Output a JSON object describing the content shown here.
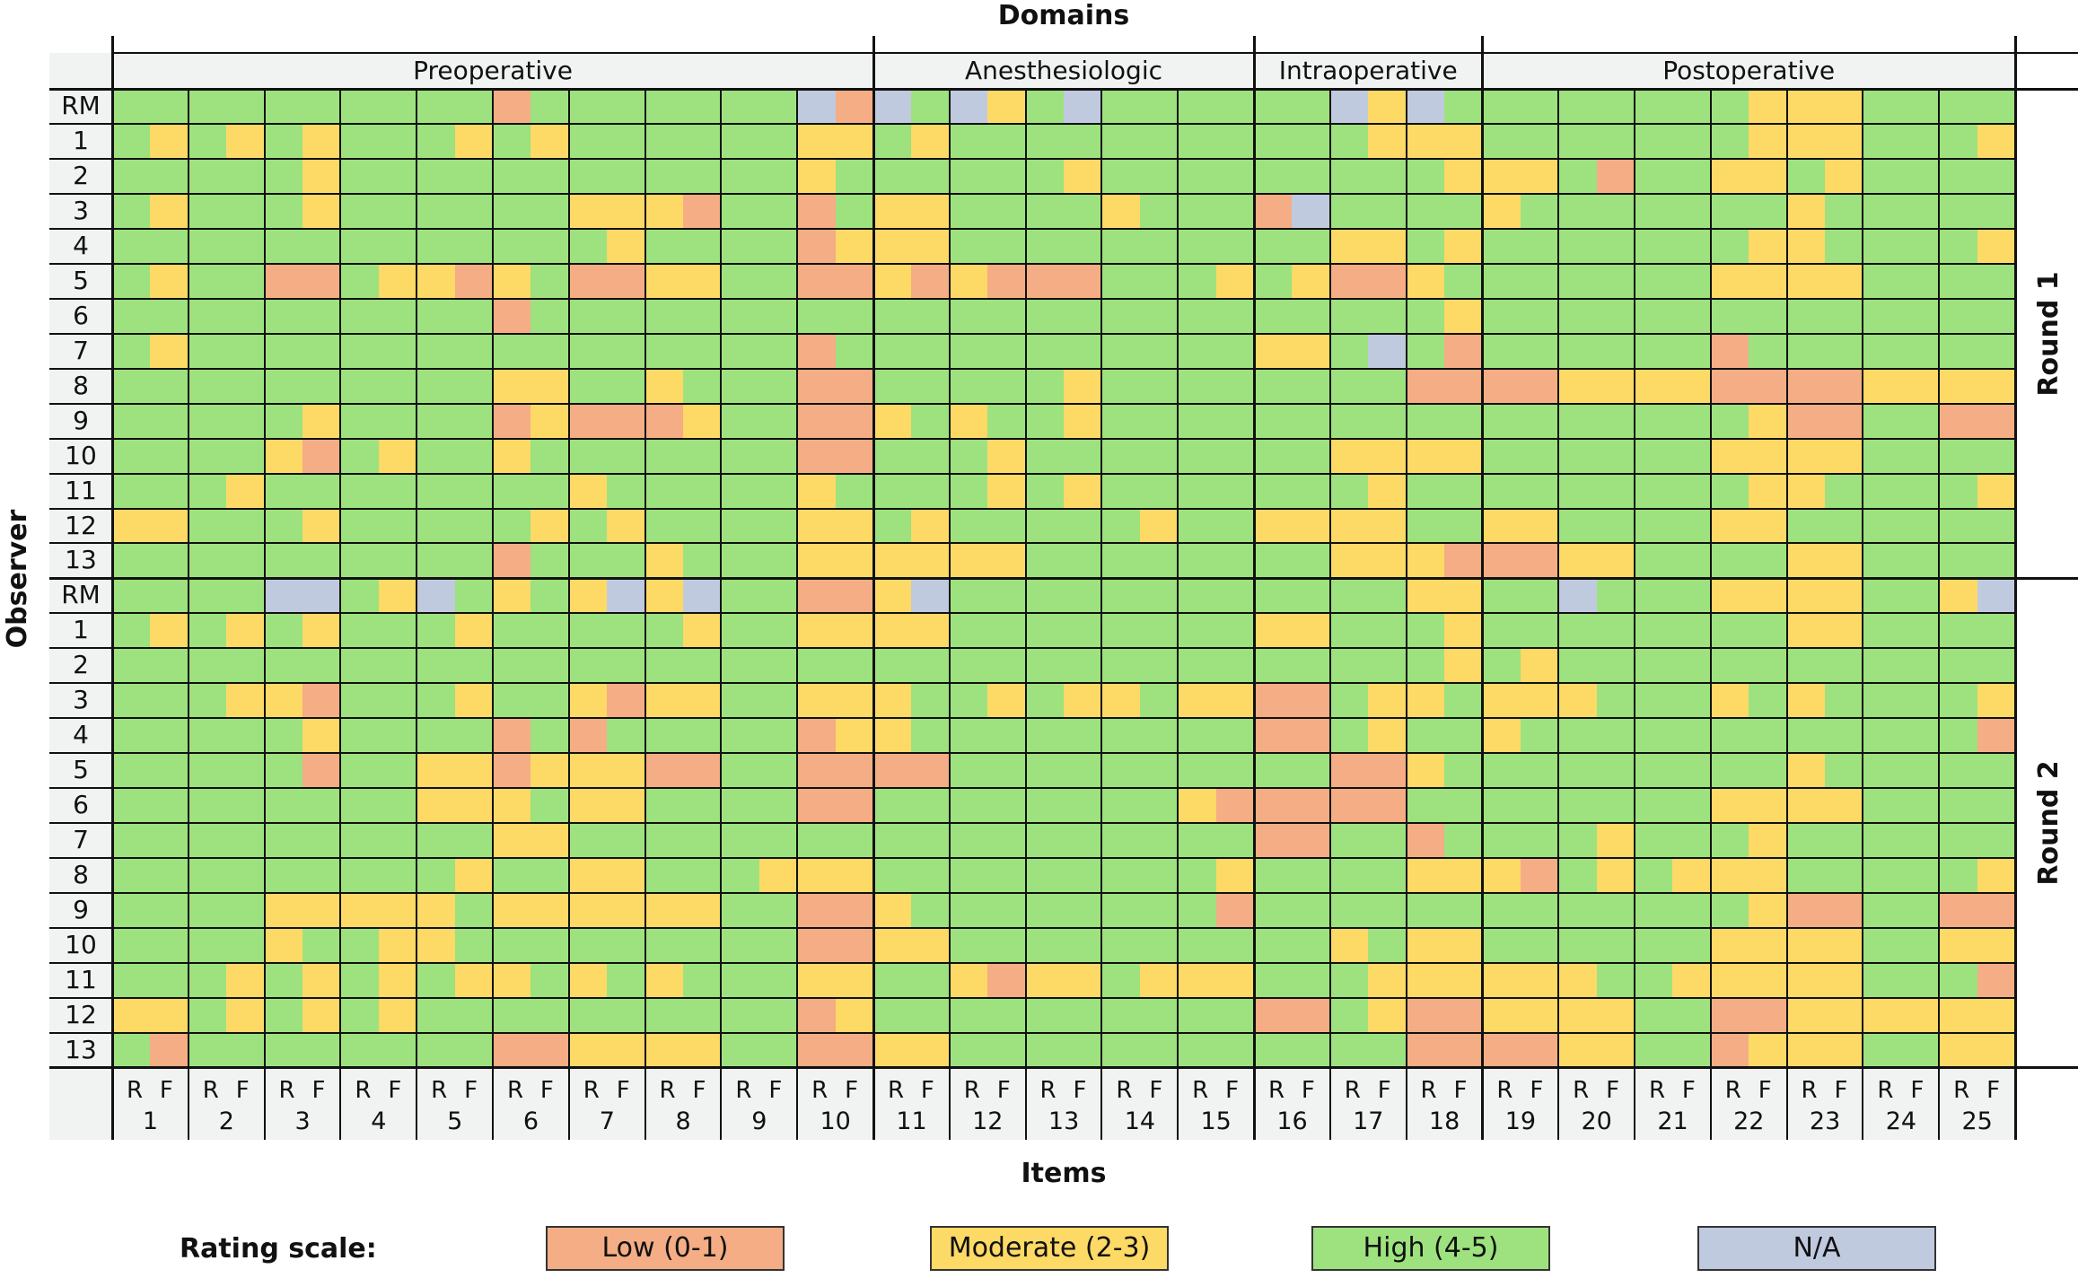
{
  "chart_data": {
    "type": "heatmap",
    "title": "Domains",
    "xlabel": "Items",
    "ylabel": "Observer",
    "subcolumns": [
      "R",
      "F"
    ],
    "items": [
      1,
      2,
      3,
      4,
      5,
      6,
      7,
      8,
      9,
      10,
      11,
      12,
      13,
      14,
      15,
      16,
      17,
      18,
      19,
      20,
      21,
      22,
      23,
      24,
      25
    ],
    "domains": [
      {
        "name": "Preoperative",
        "first_item": 1,
        "last_item": 10
      },
      {
        "name": "Anesthesiologic",
        "first_item": 11,
        "last_item": 15
      },
      {
        "name": "Intraoperative",
        "first_item": 16,
        "last_item": 18
      },
      {
        "name": "Postoperative",
        "first_item": 19,
        "last_item": 25
      }
    ],
    "rounds": [
      {
        "name": "Round 1",
        "rows": [
          {
            "observer": "RM",
            "cells": "HH HH HH HH HH LH HH HH HH NL NH NM HN HH HH HH NM NH HH HH HH HM MM HH HH"
          },
          {
            "observer": "1",
            "cells": "HM HM HM HH HM HM HH HH HH MM HM HH HH HH HH HH HM MM HH HH HH HM MM HH HM"
          },
          {
            "observer": "2",
            "cells": "HH HH HM HH HH HH HH HH HH MH HH HH HM HH HH HH HH HM MM HL HH MM HM HH HH"
          },
          {
            "observer": "3",
            "cells": "HM HH HM HH HH HH MM ML HH LH MM HH HH MH HH LN HH HH MH HH HH HH MH HH HH"
          },
          {
            "observer": "4",
            "cells": "HH HH HH HH HH HH HM HH HH LM MM HH HH HH HH HH MM HM HH HH HH HM MH HH HM"
          },
          {
            "observer": "5",
            "cells": "HM HH LL HM ML MH LL MM HH LL ML ML LL HH HM HM LL MH HH HH HH MM MM HH HH"
          },
          {
            "observer": "6",
            "cells": "HH HH HH HH HH LH HH HH HH HH HH HH HH HH HH HH HH HM HH HH HH HH HH HH HH"
          },
          {
            "observer": "7",
            "cells": "HM HH HH HH HH HH HH HH HH LH HH HH HH HH HH MM HN HL HH HH HH LH HH HH HH"
          },
          {
            "observer": "8",
            "cells": "HH HH HH HH HH MM HH MH HH LL HH HH HM HH HH HH HH LL LL MM MM LL LL MM MM"
          },
          {
            "observer": "9",
            "cells": "HH HH HM HH HH LM LL LM HH LL MH MH HM HH HH HH HH HH HH HH HH HM LL HH LL"
          },
          {
            "observer": "10",
            "cells": "HH HH ML HM HH MH HH HH HH LL HH HM HH HH HH HH MM MM HH HH HH MM MM HH HH"
          },
          {
            "observer": "11",
            "cells": "HH HM HH HH HH HH MH HH HH MH HH HM HM HH HH HH HM HH HH HH HH HM MH HH HM"
          },
          {
            "observer": "12",
            "cells": "MM HH HM HH HH HM HM HH HH MM HM HH HH HM HH MM MM HH MM HH HH MM HH HH HH"
          },
          {
            "observer": "13",
            "cells": "HH HH HH HH HH LH HH MH HH MM MM MM HH HH HH HH MM ML LL MM HH HH MM HH HH"
          }
        ]
      },
      {
        "name": "Round 2",
        "rows": [
          {
            "observer": "RM",
            "cells": "HH HH NN HM NH MH MN MN HH LL MN HH HH HH HH HH HH MM HH NH HH MM MM HH MN"
          },
          {
            "observer": "1",
            "cells": "HM HM HM HH HM HH HH HM HH MM MM HH HH HH HH MM HH HM HH HH HH HH MM HH HH"
          },
          {
            "observer": "2",
            "cells": "HH HH HH HH HH HH HH HH HH HH HH HH HH HH HH HH HH HM HM HH HH HH HH HH HH"
          },
          {
            "observer": "3",
            "cells": "HH HM ML HH HM HH ML MM HH MM MH HM HM MH MM LL HM MH MM MH HH MH MH HH HM"
          },
          {
            "observer": "4",
            "cells": "HH HH HM HH HH LH LH HH HH LM MH HH HH HH HH LL HM HH MH HH HH HH HH HH HL"
          },
          {
            "observer": "5",
            "cells": "HH HH HL HH MM LM MM LL HH LL LL HH HH HH HH HH LL MH HH HH HH HH MH HH HH"
          },
          {
            "observer": "6",
            "cells": "HH HH HH HH MM MH MM HH HH LL HH HH HH HH ML LL LL HH HH HH HH MM MM HH HH"
          },
          {
            "observer": "7",
            "cells": "HH HH HH HH HH MM HH HH HH HH HH HH HH HH HH LL HH LH HH HM HH HM HH HH HH"
          },
          {
            "observer": "8",
            "cells": "HH HH HH HH HM HH MM HH HM MM HH HH HH HH HM HH HH MM ML HM HM MM HH HH HM"
          },
          {
            "observer": "9",
            "cells": "HH HH MM MM MH MM MM MM HH LL MH HH HH HH HL HH HH HH HH HH HH HM LL HH LL"
          },
          {
            "observer": "10",
            "cells": "HH HH MH HM MH HH HH HH HH LL MM HH HH HH HH HH MH MM HH HH HH MM MM HH MM"
          },
          {
            "observer": "11",
            "cells": "HH HM HM HM HM MH MH MH HH MM HH ML MM HM MM HH HM MM MM MH HM MM MM HH HL"
          },
          {
            "observer": "12",
            "cells": "MM HM HM HM HH HH HH HH HH LM HH HH HH HH HH LL HM LL MM MM HH LL MM MM MM"
          },
          {
            "observer": "13",
            "cells": "HL HH HH HH HH LL MM MM HH LL MM HH HH HH HH HH HH LL LL MM HH LM MM HH MM"
          }
        ]
      }
    ],
    "legend_title": "Rating scale:",
    "legend_placement": "bottom",
    "legend": [
      {
        "code": "L",
        "label": "Low (0-1)",
        "color": "#f4ad84"
      },
      {
        "code": "M",
        "label": "Moderate (2-3)",
        "color": "#fdd966"
      },
      {
        "code": "H",
        "label": "High (4-5)",
        "color": "#9de27f"
      },
      {
        "code": "N",
        "label": "N/A",
        "color": "#c0cadf"
      }
    ]
  }
}
